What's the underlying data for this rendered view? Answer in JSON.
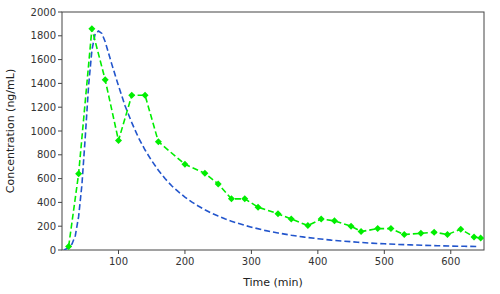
{
  "chart_data": {
    "type": "line",
    "xlabel": "Time (min)",
    "ylabel": "Concentration (ng/mL)",
    "xlim": [
      15,
      650
    ],
    "ylim": [
      0,
      2000
    ],
    "xticks": [
      100,
      200,
      300,
      400,
      500,
      600
    ],
    "yticks": [
      0,
      200,
      400,
      600,
      800,
      1000,
      1200,
      1400,
      1600,
      1800,
      2000
    ],
    "grid": false,
    "series": [
      {
        "color": "#2255cc",
        "line_style": "dashed",
        "x": [
          18,
          25,
          30,
          35,
          40,
          45,
          50,
          55,
          60,
          65,
          70,
          75,
          80,
          90,
          100,
          110,
          120,
          130,
          140,
          150,
          160,
          170,
          180,
          190,
          200,
          210,
          220,
          230,
          240,
          250,
          260,
          270,
          280,
          290,
          300,
          320,
          340,
          360,
          380,
          400,
          420,
          440,
          460,
          480,
          500,
          520,
          540,
          560,
          580,
          600,
          620,
          640
        ],
        "values": [
          0,
          20,
          50,
          120,
          280,
          550,
          950,
          1380,
          1680,
          1820,
          1840,
          1820,
          1750,
          1560,
          1380,
          1210,
          1070,
          945,
          840,
          750,
          670,
          600,
          540,
          490,
          445,
          405,
          370,
          338,
          310,
          285,
          262,
          242,
          224,
          207,
          192,
          165,
          143,
          124,
          108,
          95,
          83,
          74,
          65,
          58,
          52,
          47,
          43,
          39,
          36,
          33,
          31,
          29
        ]
      },
      {
        "color": "#00ee00",
        "line_style": "dashed",
        "marker": "diamond",
        "x": [
          25,
          40,
          60,
          80,
          100,
          120,
          140,
          160,
          200,
          230,
          250,
          270,
          290,
          310,
          340,
          360,
          385,
          405,
          425,
          450,
          465,
          490,
          510,
          530,
          555,
          575,
          595,
          615,
          635,
          645
        ],
        "values": [
          30,
          640,
          1860,
          1430,
          920,
          1300,
          1300,
          910,
          720,
          645,
          555,
          430,
          430,
          360,
          305,
          260,
          205,
          260,
          245,
          200,
          155,
          180,
          180,
          130,
          140,
          150,
          130,
          175,
          110,
          100
        ]
      }
    ]
  }
}
